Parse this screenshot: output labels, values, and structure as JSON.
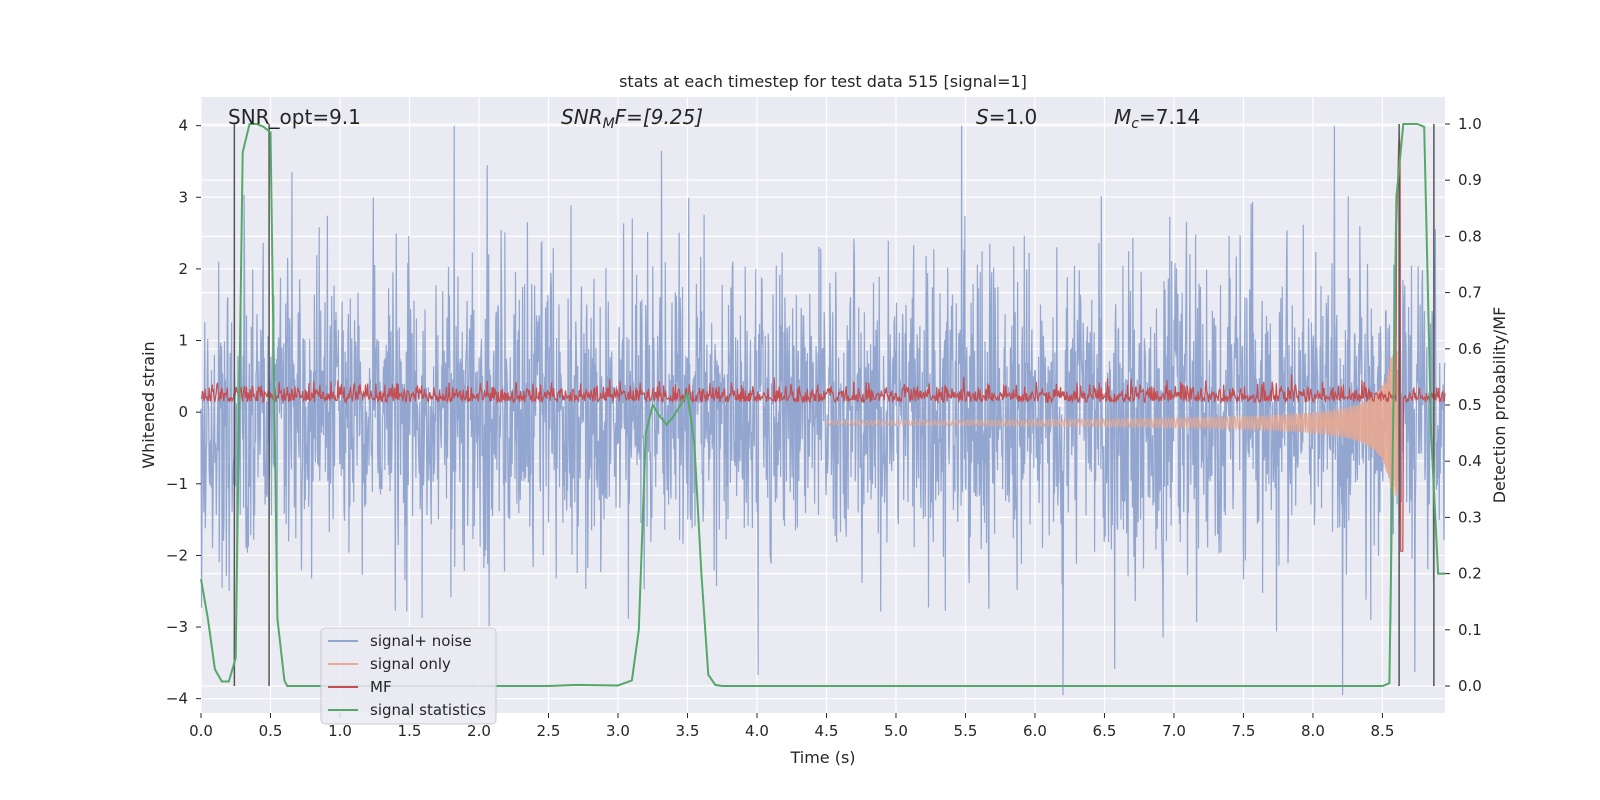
{
  "chart_data": {
    "type": "line",
    "title": "stats at each timestep for test data 515 [signal=1]",
    "xlabel": "Time (s)",
    "ylabel": "Whitened strain",
    "y2label": "Detection probability/MF",
    "xlim": [
      0.0,
      8.95
    ],
    "ylim": [
      -4.2,
      4.4
    ],
    "y2lim": [
      -0.048,
      1.048
    ],
    "xticks": [
      "0.0",
      "0.5",
      "1.0",
      "1.5",
      "2.0",
      "2.5",
      "3.0",
      "3.5",
      "4.0",
      "4.5",
      "5.0",
      "5.5",
      "6.0",
      "6.5",
      "7.0",
      "7.5",
      "8.0",
      "8.5"
    ],
    "yticks": [
      "4",
      "3",
      "2",
      "1",
      "0",
      "−1",
      "−2",
      "−3",
      "−4"
    ],
    "y2ticks": [
      "1.0",
      "0.9",
      "0.8",
      "0.7",
      "0.6",
      "0.5",
      "0.4",
      "0.3",
      "0.2",
      "0.1",
      "0.0"
    ],
    "annotations": {
      "snr_opt": "SNR_opt=9.1",
      "snr_mf_main": "SNR",
      "snr_mf_sub": "M",
      "snr_mf_rest": "F=[9.25]",
      "s_main": "S",
      "s_rest": "=1.0",
      "mc_main": "M",
      "mc_sub": "c",
      "mc_rest": "=7.14"
    },
    "series": [
      {
        "name": "signal+ noise",
        "color": "#92a6cf",
        "description": "whitened strain, noisy, amplitude about ±2, spikes to ±4"
      },
      {
        "name": "signal only",
        "color": "#e8a990",
        "description": "chirp signal growing to about ±1 near 8.62 s"
      },
      {
        "name": "MF",
        "color": "#c44e52",
        "description": "matched filter output around 0.5–0.55, peak 1.0 at 8.62 s"
      },
      {
        "name": "signal statistics",
        "color": "#55a868",
        "x": [
          0.0,
          0.05,
          0.1,
          0.15,
          0.2,
          0.25,
          0.3,
          0.35,
          0.4,
          0.45,
          0.5,
          0.55,
          0.6,
          0.62,
          0.7,
          1.0,
          1.5,
          2.0,
          2.5,
          2.7,
          3.0,
          3.1,
          3.15,
          3.2,
          3.25,
          3.3,
          3.35,
          3.4,
          3.45,
          3.5,
          3.55,
          3.6,
          3.65,
          3.7,
          3.75,
          4.0,
          5.0,
          6.0,
          7.0,
          8.0,
          8.5,
          8.55,
          8.6,
          8.65,
          8.7,
          8.75,
          8.8,
          8.85,
          8.9,
          8.95
        ],
        "y": [
          0.19,
          0.12,
          0.03,
          0.008,
          0.008,
          0.05,
          0.95,
          1.0,
          1.0,
          0.995,
          0.985,
          0.12,
          0.01,
          0.0,
          0.0,
          0.0,
          0.0,
          0.0,
          0.0,
          0.002,
          0.001,
          0.01,
          0.1,
          0.45,
          0.5,
          0.48,
          0.465,
          0.48,
          0.5,
          0.52,
          0.43,
          0.2,
          0.02,
          0.002,
          0.0,
          0.0,
          0.0,
          0.0,
          0.0,
          0.0,
          0.0,
          0.005,
          0.87,
          1.0,
          1.0,
          1.0,
          0.995,
          0.45,
          0.2,
          0.2
        ]
      }
    ],
    "vlines": [
      0.24,
      0.49,
      8.62,
      8.87
    ],
    "vline_color": "#555555",
    "legend_location": "lower-left"
  }
}
